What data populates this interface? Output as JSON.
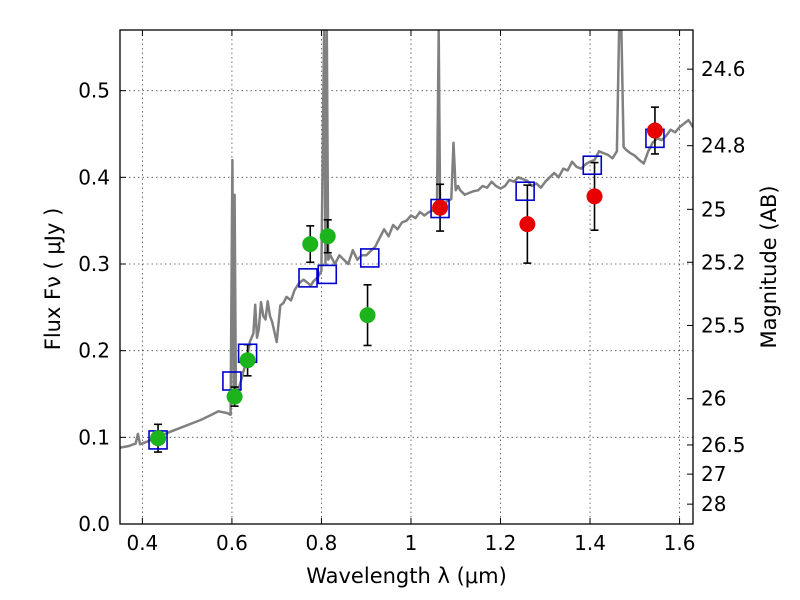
{
  "chart_data": {
    "type": "scatter",
    "xlabel": "Wavelength  λ (μm)",
    "ylabel": "Flux  Fν  ( μJy )",
    "y2label": "Magnitude (AB)",
    "xlim": [
      0.35,
      1.63
    ],
    "ylim": [
      0.0,
      0.57
    ],
    "grid": true,
    "x_ticks": [
      "0.4",
      "0.6",
      "0.8",
      "1",
      "1.2",
      "1.4",
      "1.6"
    ],
    "x_tick_values": [
      0.4,
      0.6,
      0.8,
      1.0,
      1.2,
      1.4,
      1.6
    ],
    "y_ticks": [
      "0.0",
      "0.1",
      "0.2",
      "0.3",
      "0.4",
      "0.5"
    ],
    "y_tick_values": [
      0.0,
      0.1,
      0.2,
      0.3,
      0.4,
      0.5
    ],
    "mag_ticks": [
      "24.6",
      "24.8",
      "25",
      "25.2",
      "25.5",
      "26",
      "26.5",
      "27",
      "28"
    ],
    "mag_tick_values": [
      24.6,
      24.8,
      25.0,
      25.2,
      25.5,
      26.0,
      26.5,
      27.0,
      28.0
    ],
    "colors": {
      "sed": "#808080",
      "green": "#1db31d",
      "red": "#e80000",
      "model": "#0000cc",
      "errorbar": "#000000"
    },
    "series": [
      {
        "marker": "green-circle",
        "points": [
          {
            "x": 0.435,
            "y": 0.099,
            "err": 0.016
          },
          {
            "x": 0.606,
            "y": 0.147,
            "err": 0.011
          },
          {
            "x": 0.635,
            "y": 0.189,
            "err": 0.018
          },
          {
            "x": 0.775,
            "y": 0.323,
            "err": 0.021
          },
          {
            "x": 0.814,
            "y": 0.332,
            "err": 0.019
          },
          {
            "x": 0.903,
            "y": 0.241,
            "err": 0.035
          }
        ]
      },
      {
        "marker": "red-circle",
        "points": [
          {
            "x": 1.065,
            "y": 0.365,
            "err": 0.027
          },
          {
            "x": 1.26,
            "y": 0.346,
            "err": 0.045
          },
          {
            "x": 1.41,
            "y": 0.378,
            "err": 0.039
          },
          {
            "x": 1.545,
            "y": 0.454,
            "err": 0.027
          }
        ]
      },
      {
        "marker": "blue-open-square",
        "points": [
          {
            "x": 0.435,
            "y": 0.097
          },
          {
            "x": 0.6,
            "y": 0.165
          },
          {
            "x": 0.635,
            "y": 0.197
          },
          {
            "x": 0.77,
            "y": 0.284
          },
          {
            "x": 0.813,
            "y": 0.288
          },
          {
            "x": 0.908,
            "y": 0.307
          },
          {
            "x": 1.065,
            "y": 0.364
          },
          {
            "x": 1.255,
            "y": 0.384
          },
          {
            "x": 1.405,
            "y": 0.414
          },
          {
            "x": 1.545,
            "y": 0.445
          }
        ]
      },
      {
        "marker": "gray-line",
        "points": [
          [
            0.35,
            0.088
          ],
          [
            0.37,
            0.09
          ],
          [
            0.385,
            0.093
          ],
          [
            0.39,
            0.104
          ],
          [
            0.395,
            0.092
          ],
          [
            0.41,
            0.095
          ],
          [
            0.43,
            0.1
          ],
          [
            0.45,
            0.104
          ],
          [
            0.47,
            0.108
          ],
          [
            0.49,
            0.112
          ],
          [
            0.51,
            0.116
          ],
          [
            0.53,
            0.12
          ],
          [
            0.55,
            0.125
          ],
          [
            0.57,
            0.13
          ],
          [
            0.59,
            0.128
          ],
          [
            0.597,
            0.126
          ],
          [
            0.601,
            0.42
          ],
          [
            0.604,
            0.15
          ],
          [
            0.606,
            0.38
          ],
          [
            0.609,
            0.15
          ],
          [
            0.614,
            0.155
          ],
          [
            0.62,
            0.165
          ],
          [
            0.628,
            0.18
          ],
          [
            0.635,
            0.195
          ],
          [
            0.64,
            0.21
          ],
          [
            0.648,
            0.22
          ],
          [
            0.652,
            0.253
          ],
          [
            0.656,
            0.215
          ],
          [
            0.66,
            0.225
          ],
          [
            0.665,
            0.256
          ],
          [
            0.67,
            0.24
          ],
          [
            0.675,
            0.236
          ],
          [
            0.68,
            0.257
          ],
          [
            0.685,
            0.24
          ],
          [
            0.69,
            0.233
          ],
          [
            0.7,
            0.21
          ],
          [
            0.708,
            0.252
          ],
          [
            0.715,
            0.255
          ],
          [
            0.722,
            0.262
          ],
          [
            0.732,
            0.258
          ],
          [
            0.74,
            0.27
          ],
          [
            0.75,
            0.278
          ],
          [
            0.76,
            0.282
          ],
          [
            0.77,
            0.278
          ],
          [
            0.776,
            0.275
          ],
          [
            0.782,
            0.28
          ],
          [
            0.792,
            0.285
          ],
          [
            0.8,
            0.292
          ],
          [
            0.806,
            0.57
          ],
          [
            0.809,
            0.3
          ],
          [
            0.812,
            0.57
          ],
          [
            0.815,
            0.305
          ],
          [
            0.82,
            0.31
          ],
          [
            0.83,
            0.3
          ],
          [
            0.84,
            0.31
          ],
          [
            0.85,
            0.305
          ],
          [
            0.86,
            0.3
          ],
          [
            0.87,
            0.316
          ],
          [
            0.88,
            0.305
          ],
          [
            0.89,
            0.31
          ],
          [
            0.9,
            0.31
          ],
          [
            0.91,
            0.315
          ],
          [
            0.92,
            0.32
          ],
          [
            0.93,
            0.33
          ],
          [
            0.94,
            0.34
          ],
          [
            0.95,
            0.332
          ],
          [
            0.96,
            0.345
          ],
          [
            0.97,
            0.34
          ],
          [
            0.98,
            0.348
          ],
          [
            0.99,
            0.35
          ],
          [
            1.0,
            0.356
          ],
          [
            1.01,
            0.353
          ],
          [
            1.02,
            0.36
          ],
          [
            1.03,
            0.356
          ],
          [
            1.04,
            0.36
          ],
          [
            1.05,
            0.362
          ],
          [
            1.058,
            0.358
          ],
          [
            1.062,
            0.57
          ],
          [
            1.065,
            0.362
          ],
          [
            1.07,
            0.366
          ],
          [
            1.08,
            0.372
          ],
          [
            1.09,
            0.375
          ],
          [
            1.095,
            0.44
          ],
          [
            1.1,
            0.385
          ],
          [
            1.105,
            0.39
          ],
          [
            1.11,
            0.385
          ],
          [
            1.12,
            0.38
          ],
          [
            1.13,
            0.382
          ],
          [
            1.14,
            0.384
          ],
          [
            1.15,
            0.385
          ],
          [
            1.16,
            0.39
          ],
          [
            1.17,
            0.388
          ],
          [
            1.18,
            0.395
          ],
          [
            1.19,
            0.39
          ],
          [
            1.2,
            0.387
          ],
          [
            1.21,
            0.39
          ],
          [
            1.22,
            0.397
          ],
          [
            1.23,
            0.395
          ],
          [
            1.24,
            0.4
          ],
          [
            1.25,
            0.398
          ],
          [
            1.26,
            0.396
          ],
          [
            1.27,
            0.39
          ],
          [
            1.28,
            0.393
          ],
          [
            1.29,
            0.388
          ],
          [
            1.3,
            0.395
          ],
          [
            1.31,
            0.4
          ],
          [
            1.32,
            0.405
          ],
          [
            1.33,
            0.4
          ],
          [
            1.34,
            0.41
          ],
          [
            1.35,
            0.408
          ],
          [
            1.36,
            0.418
          ],
          [
            1.37,
            0.412
          ],
          [
            1.38,
            0.41
          ],
          [
            1.39,
            0.415
          ],
          [
            1.4,
            0.418
          ],
          [
            1.41,
            0.42
          ],
          [
            1.42,
            0.43
          ],
          [
            1.43,
            0.428
          ],
          [
            1.44,
            0.426
          ],
          [
            1.45,
            0.422
          ],
          [
            1.46,
            0.43
          ],
          [
            1.465,
            0.57
          ],
          [
            1.47,
            0.57
          ],
          [
            1.475,
            0.435
          ],
          [
            1.48,
            0.432
          ],
          [
            1.49,
            0.428
          ],
          [
            1.5,
            0.425
          ],
          [
            1.51,
            0.42
          ],
          [
            1.52,
            0.416
          ],
          [
            1.53,
            0.43
          ],
          [
            1.54,
            0.44
          ],
          [
            1.55,
            0.445
          ],
          [
            1.56,
            0.443
          ],
          [
            1.57,
            0.448
          ],
          [
            1.58,
            0.455
          ],
          [
            1.59,
            0.452
          ],
          [
            1.6,
            0.458
          ],
          [
            1.61,
            0.462
          ],
          [
            1.62,
            0.466
          ],
          [
            1.63,
            0.458
          ]
        ]
      }
    ]
  }
}
